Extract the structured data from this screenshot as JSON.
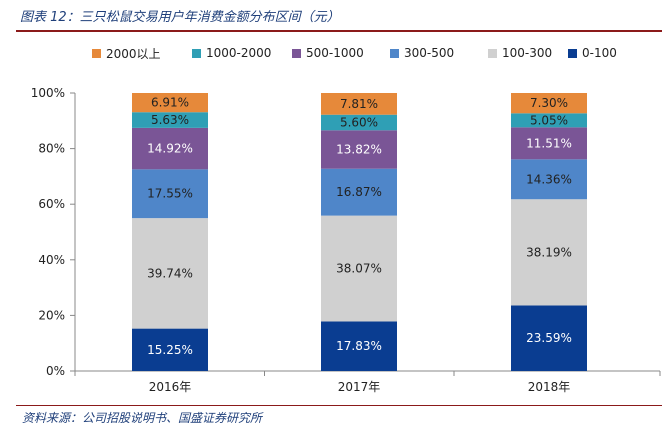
{
  "title": "图表 12：三只松鼠交易用户年消费金额分布区间（元）",
  "source": "资料来源：公司招股说明书、国盛证券研究所",
  "chart_data": {
    "type": "bar",
    "stacked": true,
    "categories": [
      "2016年",
      "2017年",
      "2018年"
    ],
    "y_ticks": [
      "0%",
      "20%",
      "40%",
      "60%",
      "80%",
      "100%"
    ],
    "ylim": [
      0,
      100
    ],
    "legend_position": "top",
    "series": [
      {
        "name": "0-100",
        "color": "#0a3d91",
        "label_color": "#ffffff",
        "values": [
          15.25,
          17.83,
          23.59
        ],
        "labels": [
          "15.25%",
          "17.83%",
          "23.59%"
        ]
      },
      {
        "name": "100-300",
        "color": "#d0d0d0",
        "label_color": "#222222",
        "values": [
          39.74,
          38.07,
          38.19
        ],
        "labels": [
          "39.74%",
          "38.07%",
          "38.19%"
        ]
      },
      {
        "name": "300-500",
        "color": "#4f86c9",
        "label_color": "#222222",
        "values": [
          17.55,
          16.87,
          14.36
        ],
        "labels": [
          "17.55%",
          "16.87%",
          "14.36%"
        ]
      },
      {
        "name": "500-1000",
        "color": "#7a5596",
        "label_color": "#ffffff",
        "values": [
          14.92,
          13.82,
          11.51
        ],
        "labels": [
          "14.92%",
          "13.82%",
          "11.51%"
        ]
      },
      {
        "name": "1000-2000",
        "color": "#2f9fb5",
        "label_color": "#222222",
        "values": [
          5.63,
          5.6,
          5.05
        ],
        "labels": [
          "5.63%",
          "5.60%",
          "5.05%"
        ]
      },
      {
        "name": "2000以上",
        "color": "#e6893a",
        "label_color": "#222222",
        "values": [
          6.91,
          7.81,
          7.3
        ],
        "labels": [
          "6.91%",
          "7.81%",
          "7.30%"
        ]
      }
    ],
    "legend_order": [
      "2000以上",
      "1000-2000",
      "500-1000",
      "300-500",
      "100-300",
      "0-100"
    ]
  }
}
